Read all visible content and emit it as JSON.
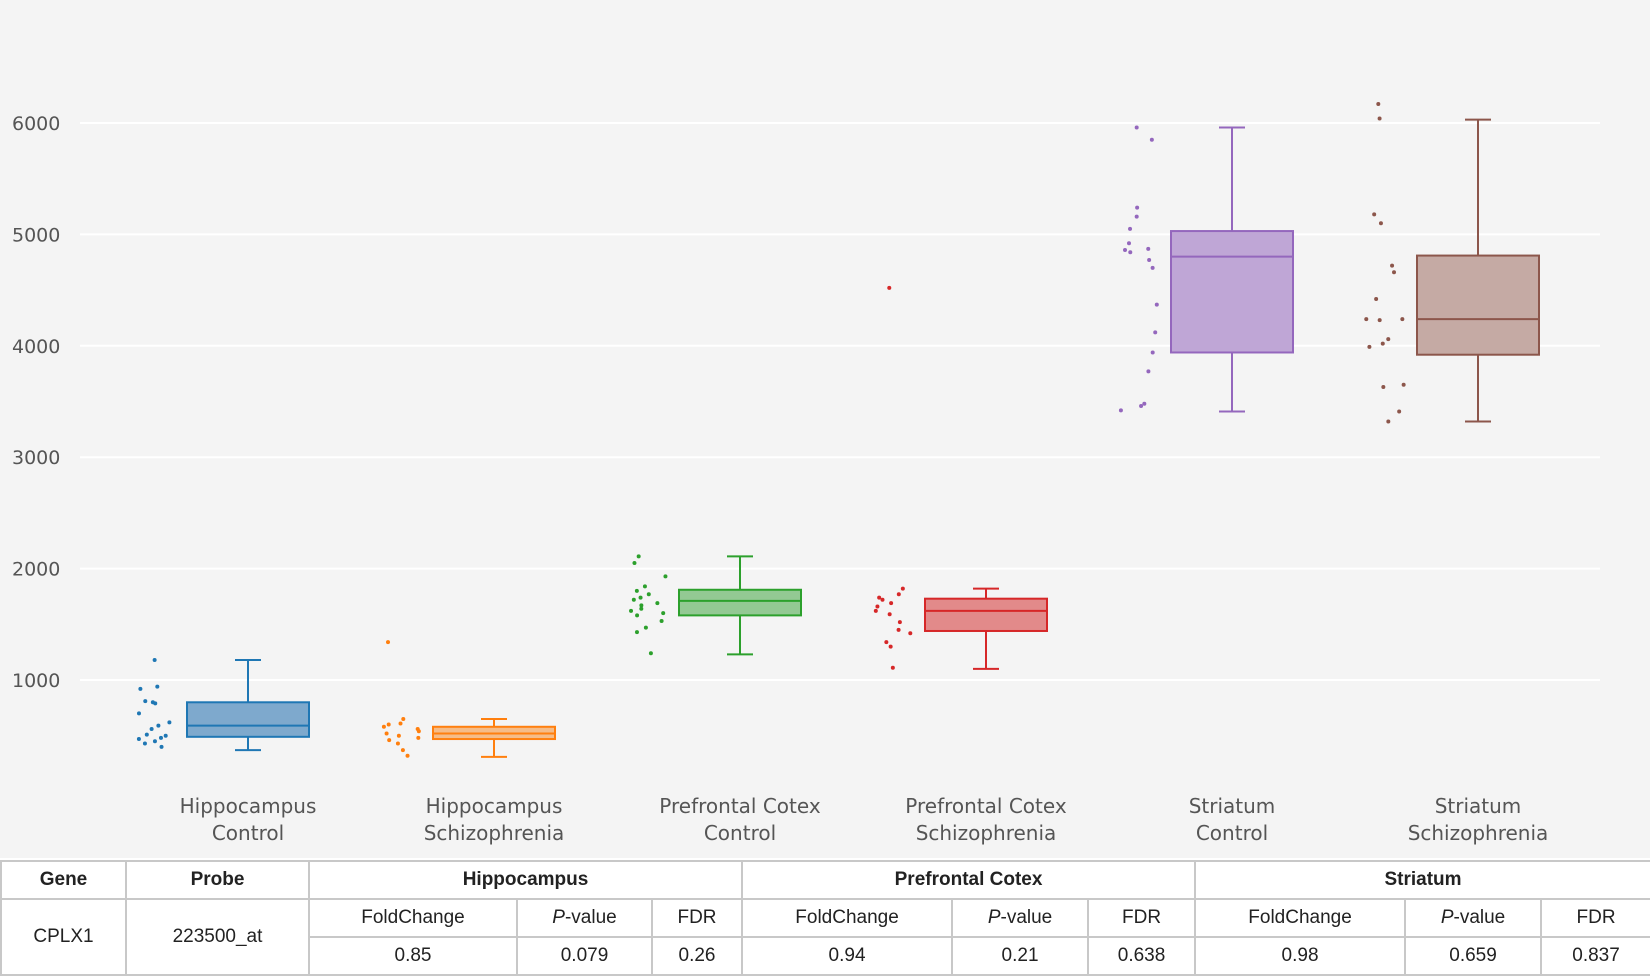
{
  "chart_data": {
    "type": "box",
    "y_ticks": [
      1000,
      2000,
      3000,
      4000,
      5000,
      6000
    ],
    "ylim": [
      0,
      7000
    ],
    "grid": true,
    "categories": [
      {
        "name": "Hippocampus Control",
        "label_lines": [
          "Hippocampus",
          "Control"
        ],
        "color": "#1f77b4",
        "box_fill": "#7ea9cd",
        "stats": {
          "min": 370,
          "q1": 490,
          "median": 590,
          "q3": 800,
          "max": 1180
        },
        "points": [
          1180,
          940,
          920,
          810,
          800,
          790,
          700,
          620,
          590,
          560,
          510,
          500,
          480,
          470,
          450,
          430,
          400
        ]
      },
      {
        "name": "Hippocampus Schizophrenia",
        "label_lines": [
          "Hippocampus",
          "Schizophrenia"
        ],
        "color": "#ff7f0e",
        "box_fill": "#f5bc88",
        "stats": {
          "min": 310,
          "q1": 470,
          "median": 520,
          "q3": 580,
          "max": 650
        },
        "points": [
          1340,
          650,
          610,
          600,
          580,
          560,
          540,
          520,
          500,
          480,
          460,
          430,
          370,
          320
        ]
      },
      {
        "name": "Prefrontal Cotex Control",
        "label_lines": [
          "Prefrontal Cotex",
          "Control"
        ],
        "color": "#2ca02c",
        "box_fill": "#93c993",
        "stats": {
          "min": 1230,
          "q1": 1580,
          "median": 1710,
          "q3": 1810,
          "max": 2110
        },
        "points": [
          2110,
          2050,
          1930,
          1840,
          1800,
          1770,
          1740,
          1720,
          1690,
          1670,
          1640,
          1620,
          1600,
          1580,
          1530,
          1470,
          1430,
          1240
        ]
      },
      {
        "name": "Prefrontal Cotex Schizophrenia",
        "label_lines": [
          "Prefrontal Cotex",
          "Schizophrenia"
        ],
        "color": "#d62728",
        "box_fill": "#e28a8a",
        "stats": {
          "min": 1100,
          "q1": 1440,
          "median": 1620,
          "q3": 1730,
          "max": 1820
        },
        "points": [
          4520,
          1820,
          1770,
          1740,
          1720,
          1690,
          1660,
          1620,
          1590,
          1520,
          1450,
          1420,
          1340,
          1300,
          1110
        ]
      },
      {
        "name": "Striatum Control",
        "label_lines": [
          "Striatum",
          "Control"
        ],
        "color": "#9467bd",
        "box_fill": "#bfa6d6",
        "stats": {
          "min": 3410,
          "q1": 3940,
          "median": 4800,
          "q3": 5030,
          "max": 5960
        },
        "points": [
          5960,
          5850,
          5240,
          5160,
          5050,
          4920,
          4870,
          4860,
          4840,
          4770,
          4700,
          4370,
          4120,
          3940,
          3770,
          3480,
          3460,
          3420
        ]
      },
      {
        "name": "Striatum Schizophrenia",
        "label_lines": [
          "Striatum",
          "Schizophrenia"
        ],
        "color": "#8c564b",
        "box_fill": "#c5aaa4",
        "stats": {
          "min": 3320,
          "q1": 3920,
          "median": 4240,
          "q3": 4810,
          "max": 6030
        },
        "points": [
          6170,
          6040,
          5180,
          5100,
          4720,
          4660,
          4420,
          4240,
          4240,
          4230,
          4060,
          4020,
          3990,
          3650,
          3630,
          3410,
          3320
        ]
      }
    ]
  },
  "table": {
    "headers": {
      "gene": "Gene",
      "probe": "Probe",
      "regions": [
        "Hippocampus",
        "Prefrontal Cotex",
        "Striatum"
      ]
    },
    "metric_labels": {
      "fold_change": "FoldChange",
      "p_value_prefix": "P",
      "p_value_suffix": "-value",
      "fdr": "FDR"
    },
    "row": {
      "gene": "CPLX1",
      "probe": "223500_at",
      "values": [
        {
          "fold_change": "0.85",
          "p_value": "0.079",
          "fdr": "0.26"
        },
        {
          "fold_change": "0.94",
          "p_value": "0.21",
          "fdr": "0.638"
        },
        {
          "fold_change": "0.98",
          "p_value": "0.659",
          "fdr": "0.837"
        }
      ]
    }
  }
}
